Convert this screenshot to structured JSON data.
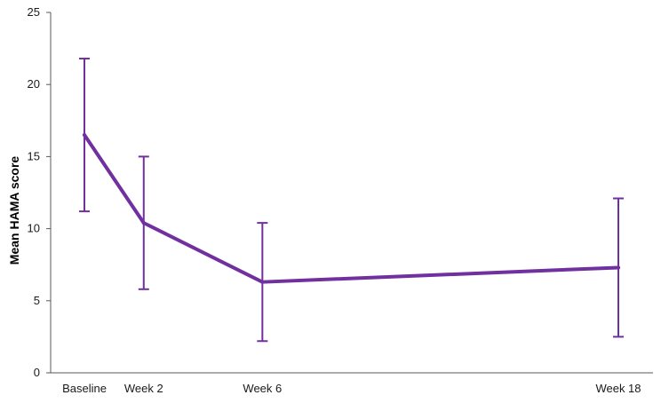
{
  "chart_data": {
    "type": "line",
    "title": "",
    "xlabel": "",
    "ylabel": "Mean HAMA score",
    "ylim": [
      0,
      25
    ],
    "yticks": [
      0,
      5,
      10,
      15,
      20,
      25
    ],
    "grid": false,
    "series": [
      {
        "name": "Mean HAMA score",
        "color": "#7030a0",
        "points": [
          {
            "label": "Baseline",
            "week": 0,
            "mean": 16.5,
            "error_low": 11.2,
            "error_high": 21.8
          },
          {
            "label": "Week 2",
            "week": 2,
            "mean": 10.4,
            "error_low": 5.8,
            "error_high": 15.0
          },
          {
            "label": "Week 6",
            "week": 6,
            "mean": 6.3,
            "error_low": 2.2,
            "error_high": 10.4
          },
          {
            "label": "Week 18",
            "week": 18,
            "mean": 7.3,
            "error_low": 2.5,
            "error_high": 12.1
          }
        ]
      }
    ]
  }
}
